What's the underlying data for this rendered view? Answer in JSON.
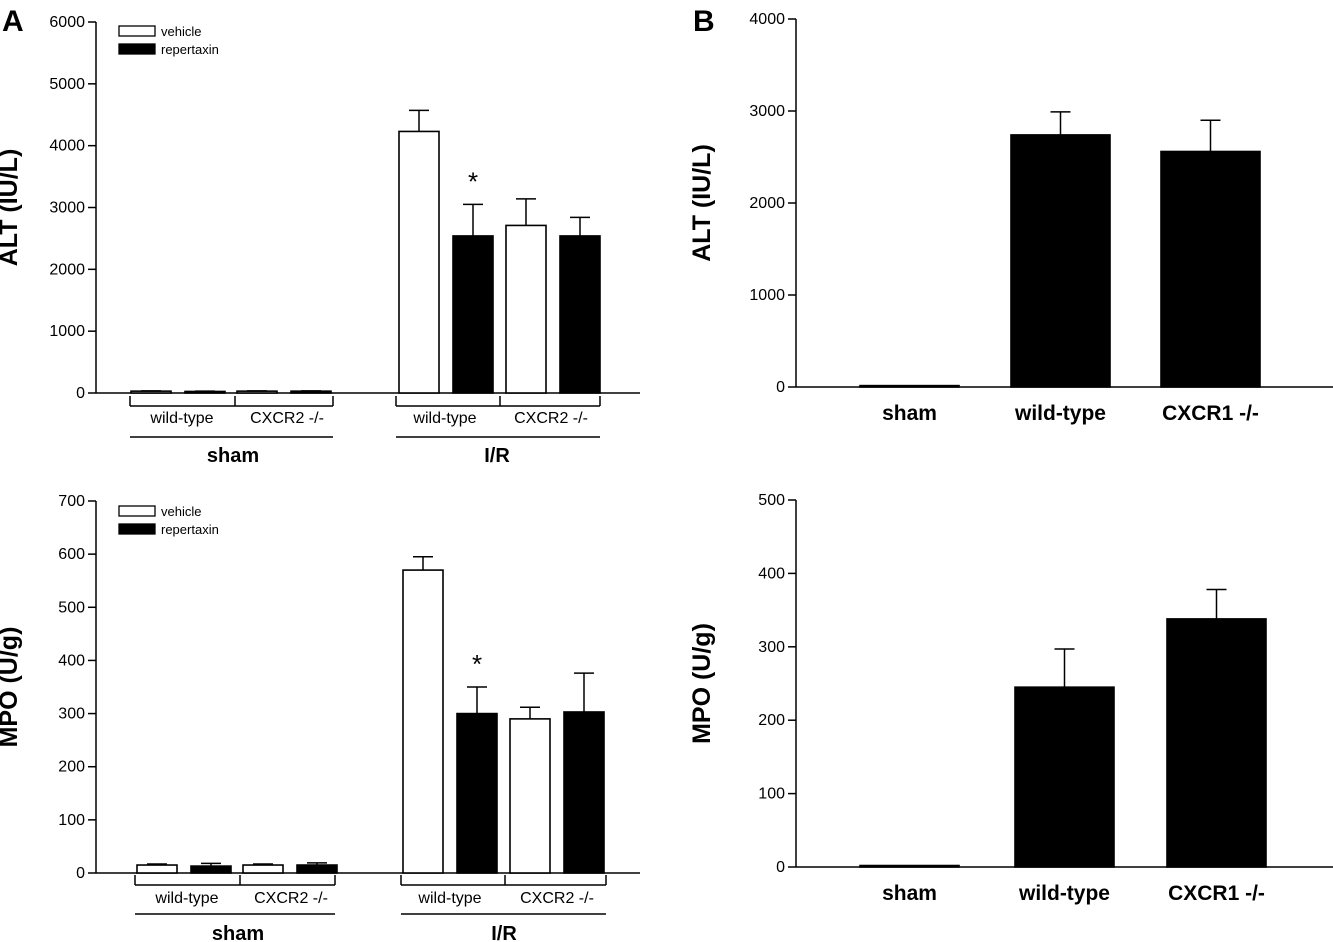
{
  "panels": {
    "A": "A",
    "B": "B"
  },
  "chart_data": [
    {
      "id": "A_ALT",
      "type": "bar",
      "ylabel": "ALT (IU/L)",
      "ylim": [
        0,
        6000
      ],
      "yticks": [
        0,
        1000,
        2000,
        3000,
        4000,
        5000,
        6000
      ],
      "legend": {
        "entries": [
          "vehicle",
          "repertaxin"
        ],
        "position": "top-left"
      },
      "series_fill": {
        "vehicle": "#ffffff",
        "repertaxin": "#000000"
      },
      "groups": [
        {
          "label": "wild-type",
          "condition": "sham"
        },
        {
          "label": "CXCR2 -/-",
          "condition": "sham"
        },
        {
          "label": "wild-type",
          "condition": "I/R"
        },
        {
          "label": "CXCR2 -/-",
          "condition": "I/R"
        }
      ],
      "conditions": [
        "sham",
        "I/R"
      ],
      "series": [
        {
          "name": "vehicle",
          "values": [
            30,
            30,
            4230,
            2710
          ],
          "errors": [
            5,
            5,
            340,
            430
          ]
        },
        {
          "name": "repertaxin",
          "values": [
            25,
            30,
            2540,
            2540
          ],
          "errors": [
            5,
            5,
            510,
            300
          ]
        }
      ],
      "annotations": [
        {
          "text": "*",
          "group": 2,
          "series": "repertaxin"
        }
      ]
    },
    {
      "id": "A_MPO",
      "type": "bar",
      "ylabel": "MPO (U/g)",
      "ylim": [
        0,
        700
      ],
      "yticks": [
        0,
        100,
        200,
        300,
        400,
        500,
        600,
        700
      ],
      "legend": {
        "entries": [
          "vehicle",
          "repertaxin"
        ],
        "position": "top-left"
      },
      "series_fill": {
        "vehicle": "#ffffff",
        "repertaxin": "#000000"
      },
      "groups": [
        {
          "label": "wild-type",
          "condition": "sham"
        },
        {
          "label": "CXCR2 -/-",
          "condition": "sham"
        },
        {
          "label": "wild-type",
          "condition": "I/R"
        },
        {
          "label": "CXCR2 -/-",
          "condition": "I/R"
        }
      ],
      "conditions": [
        "sham",
        "I/R"
      ],
      "series": [
        {
          "name": "vehicle",
          "values": [
            15,
            15,
            570,
            290
          ],
          "errors": [
            2,
            2,
            25,
            22
          ]
        },
        {
          "name": "repertaxin",
          "values": [
            13,
            15,
            300,
            303
          ],
          "errors": [
            5,
            4,
            50,
            73
          ]
        }
      ],
      "annotations": [
        {
          "text": "*",
          "group": 2,
          "series": "repertaxin"
        }
      ]
    },
    {
      "id": "B_ALT",
      "type": "bar",
      "ylabel": "ALT (IU/L)",
      "ylim": [
        0,
        4000
      ],
      "yticks": [
        0,
        1000,
        2000,
        3000,
        4000
      ],
      "categories": [
        "sham",
        "wild-type",
        "CXCR1 -/-"
      ],
      "values": [
        15,
        2740,
        2560
      ],
      "errors": [
        0,
        250,
        340
      ],
      "fill": "#000000"
    },
    {
      "id": "B_MPO",
      "type": "bar",
      "ylabel": "MPO (U/g)",
      "ylim": [
        0,
        500
      ],
      "yticks": [
        0,
        100,
        200,
        300,
        400,
        500
      ],
      "categories": [
        "sham",
        "wild-type",
        "CXCR1 -/-"
      ],
      "values": [
        2,
        245,
        338
      ],
      "errors": [
        0,
        52,
        40
      ],
      "fill": "#000000"
    }
  ]
}
